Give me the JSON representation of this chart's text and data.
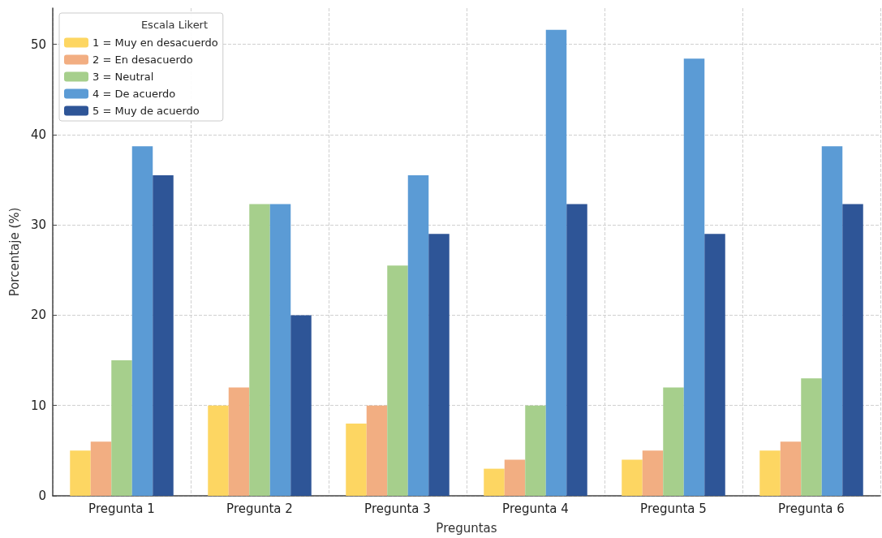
{
  "chart_data": {
    "type": "bar",
    "xlabel": "Preguntas",
    "ylabel": "Porcentaje (%)",
    "legend_title": "Escala Likert",
    "categories": [
      "Pregunta 1",
      "Pregunta 2",
      "Pregunta 3",
      "Pregunta 4",
      "Pregunta 5",
      "Pregunta 6"
    ],
    "series": [
      {
        "name": "1 = Muy en desacuerdo",
        "color": "#fdd662",
        "values": [
          5,
          10,
          8,
          3,
          4,
          5
        ]
      },
      {
        "name": "2 = En desacuerdo",
        "color": "#f2ae82",
        "values": [
          6,
          12,
          10,
          4,
          5,
          6
        ]
      },
      {
        "name": "3 = Neutral",
        "color": "#a6cf8c",
        "values": [
          15,
          32.3,
          25.5,
          10,
          12,
          13
        ]
      },
      {
        "name": "4 = De acuerdo",
        "color": "#5b9bd5",
        "values": [
          38.7,
          32.3,
          35.5,
          51.6,
          48.4,
          38.7
        ]
      },
      {
        "name": "5 = Muy de acuerdo",
        "color": "#2e5597",
        "values": [
          35.5,
          20,
          29,
          32.3,
          29,
          32.3
        ]
      }
    ],
    "ylim": [
      0,
      54
    ],
    "yticks": [
      0,
      10,
      20,
      30,
      40,
      50
    ],
    "grid": true,
    "legend": "top left"
  }
}
